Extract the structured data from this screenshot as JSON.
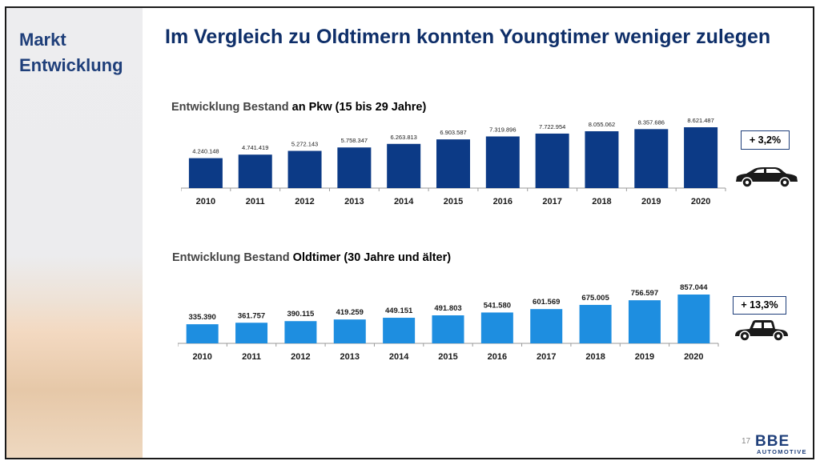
{
  "sidebar": {
    "title_line1": "Markt",
    "title_line2": "Entwicklung"
  },
  "header": {
    "title": "Im Vergleich zu Oldtimern konnten Youngtimer weniger zulegen"
  },
  "sections": [
    {
      "title_prefix": "Entwicklung Bestand",
      "title_suffix": "an Pkw (15 bis 29 Jahre)",
      "growth": "+ 3,2%",
      "icon": "modern-car-icon"
    },
    {
      "title_prefix": "Entwicklung Bestand",
      "title_suffix": "Oldtimer (30 Jahre und älter)",
      "growth": "+ 13,3%",
      "icon": "vintage-car-icon"
    }
  ],
  "chart_data": [
    {
      "type": "bar",
      "title": "Entwicklung Bestand an Pkw (15 bis 29 Jahre)",
      "categories": [
        "2010",
        "2011",
        "2012",
        "2013",
        "2014",
        "2015",
        "2016",
        "2017",
        "2018",
        "2019",
        "2020"
      ],
      "values": [
        4240148,
        4741419,
        5272143,
        5758347,
        6263813,
        6903587,
        7319896,
        7722954,
        8055062,
        8357686,
        8621487
      ],
      "labels": [
        "4.240.148",
        "4.741.419",
        "5.272.143",
        "5.758.347",
        "6.263.813",
        "6.903.587",
        "7.319.896",
        "7.722.954",
        "8.055.062",
        "8.357.686",
        "8.621.487"
      ],
      "color": "#0c3a86",
      "ylim": [
        0,
        8621487
      ]
    },
    {
      "type": "bar",
      "title": "Entwicklung Bestand Oldtimer (30 Jahre und älter)",
      "categories": [
        "2010",
        "2011",
        "2012",
        "2013",
        "2014",
        "2015",
        "2016",
        "2017",
        "2018",
        "2019",
        "2020"
      ],
      "values": [
        335390,
        361757,
        390115,
        419259,
        449151,
        491803,
        541580,
        601569,
        675005,
        756597,
        857044
      ],
      "labels": [
        "335.390",
        "361.757",
        "390.115",
        "419.259",
        "449.151",
        "491.803",
        "541.580",
        "601.569",
        "675.005",
        "756.597",
        "857.044"
      ],
      "color": "#1e8ee0",
      "ylim": [
        0,
        857044
      ]
    }
  ],
  "footer": {
    "page_number": "17",
    "logo_main": "BBE",
    "logo_sub": "AUTOMOTIVE"
  }
}
